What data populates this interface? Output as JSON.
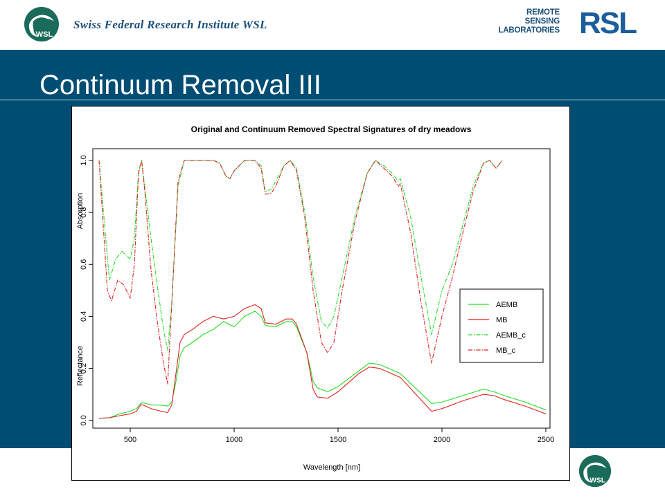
{
  "header": {
    "institute": "Swiss Federal  Research Institute WSL",
    "wsl_logo_text": "WSL",
    "rsl_words": [
      "REMOTE",
      "SENSING",
      "LABORATORIES"
    ],
    "rsl_letters": "RSL"
  },
  "slide": {
    "title": "Continuum Removal III"
  },
  "colors": {
    "band": "#004d74",
    "green": "#22dd22",
    "red": "#dd2222"
  },
  "chart_data": {
    "type": "line",
    "title": "Original and Continuum Removed Spectral Signatures of dry meadows",
    "xlabel": "Wavelength [nm]",
    "ylabel_bottom": "Reflectance",
    "ylabel_top": "Absorption",
    "xlim": [
      320,
      2520
    ],
    "ylim": [
      -0.03,
      1.045
    ],
    "xticks": [
      500,
      1000,
      1500,
      2000,
      2500
    ],
    "yticks": [
      0.0,
      0.2,
      0.4,
      0.6,
      0.8,
      1.0
    ],
    "ytick_labels": [
      "0.0",
      "0.2",
      "0.4",
      "0.6",
      "0.8",
      "1.0"
    ],
    "legend": {
      "position": "right",
      "entries": [
        "AEMB",
        "MB",
        "AEMB_c",
        "MB_c"
      ]
    },
    "series": [
      {
        "name": "AEMB",
        "color": "#22dd22",
        "style": "solid",
        "x": [
          350,
          400,
          450,
          500,
          530,
          550,
          560,
          600,
          650,
          680,
          700,
          720,
          740,
          760,
          800,
          850,
          900,
          950,
          1000,
          1050,
          1100,
          1130,
          1150,
          1200,
          1250,
          1280,
          1300,
          1350,
          1380,
          1400,
          1450,
          1500,
          1600,
          1650,
          1700,
          1800,
          1950,
          2000,
          2100,
          2200,
          2250,
          2300,
          2400,
          2500
        ],
        "y": [
          0.008,
          0.01,
          0.025,
          0.035,
          0.045,
          0.065,
          0.068,
          0.06,
          0.058,
          0.055,
          0.07,
          0.15,
          0.25,
          0.28,
          0.3,
          0.33,
          0.35,
          0.38,
          0.36,
          0.4,
          0.42,
          0.4,
          0.365,
          0.36,
          0.38,
          0.38,
          0.36,
          0.26,
          0.15,
          0.125,
          0.11,
          0.13,
          0.19,
          0.22,
          0.215,
          0.18,
          0.065,
          0.07,
          0.095,
          0.12,
          0.11,
          0.095,
          0.07,
          0.04
        ]
      },
      {
        "name": "MB",
        "color": "#dd2222",
        "style": "solid",
        "x": [
          350,
          400,
          450,
          500,
          530,
          550,
          560,
          600,
          650,
          680,
          700,
          720,
          740,
          760,
          800,
          850,
          900,
          950,
          1000,
          1050,
          1100,
          1130,
          1150,
          1200,
          1250,
          1280,
          1300,
          1350,
          1380,
          1400,
          1450,
          1500,
          1600,
          1650,
          1700,
          1800,
          1950,
          2000,
          2100,
          2200,
          2250,
          2300,
          2400,
          2500
        ],
        "y": [
          0.008,
          0.01,
          0.018,
          0.025,
          0.035,
          0.06,
          0.06,
          0.045,
          0.035,
          0.03,
          0.06,
          0.18,
          0.3,
          0.33,
          0.35,
          0.38,
          0.4,
          0.39,
          0.4,
          0.43,
          0.445,
          0.43,
          0.375,
          0.37,
          0.39,
          0.39,
          0.37,
          0.26,
          0.12,
          0.09,
          0.085,
          0.11,
          0.18,
          0.205,
          0.2,
          0.165,
          0.035,
          0.045,
          0.075,
          0.1,
          0.095,
          0.08,
          0.055,
          0.025
        ]
      },
      {
        "name": "AEMB_c",
        "color": "#22dd22",
        "style": "dashdot",
        "x": [
          350,
          380,
          400,
          430,
          460,
          500,
          520,
          540,
          555,
          570,
          600,
          630,
          660,
          680,
          700,
          730,
          760,
          800,
          850,
          900,
          930,
          960,
          980,
          1000,
          1050,
          1100,
          1130,
          1150,
          1180,
          1200,
          1240,
          1270,
          1300,
          1340,
          1380,
          1420,
          1450,
          1480,
          1520,
          1580,
          1640,
          1680,
          1720,
          1760,
          1790,
          1800,
          1850,
          1900,
          1950,
          2000,
          2050,
          2100,
          2150,
          2200,
          2230,
          2260,
          2290
        ],
        "y": [
          1.0,
          0.72,
          0.54,
          0.62,
          0.65,
          0.62,
          0.7,
          0.96,
          1.0,
          0.9,
          0.7,
          0.52,
          0.35,
          0.27,
          0.45,
          0.9,
          1.0,
          1.0,
          1.0,
          1.0,
          0.99,
          0.94,
          0.93,
          0.96,
          1.0,
          1.0,
          0.98,
          0.88,
          0.89,
          0.92,
          0.98,
          1.0,
          0.97,
          0.8,
          0.55,
          0.38,
          0.355,
          0.4,
          0.55,
          0.78,
          0.95,
          1.0,
          0.98,
          0.95,
          0.92,
          0.93,
          0.78,
          0.55,
          0.33,
          0.5,
          0.6,
          0.75,
          0.9,
          0.99,
          1.0,
          0.97,
          1.0
        ]
      },
      {
        "name": "MB_c",
        "color": "#dd2222",
        "style": "dashdot",
        "x": [
          350,
          370,
          390,
          410,
          440,
          470,
          500,
          520,
          540,
          555,
          570,
          600,
          630,
          660,
          680,
          700,
          730,
          760,
          800,
          850,
          900,
          930,
          960,
          980,
          1000,
          1050,
          1100,
          1130,
          1150,
          1180,
          1200,
          1240,
          1270,
          1300,
          1340,
          1380,
          1420,
          1450,
          1480,
          1520,
          1580,
          1640,
          1680,
          1720,
          1760,
          1790,
          1800,
          1850,
          1900,
          1950,
          2000,
          2050,
          2100,
          2150,
          2200,
          2230,
          2260,
          2290
        ],
        "y": [
          1.0,
          0.75,
          0.5,
          0.46,
          0.54,
          0.52,
          0.47,
          0.6,
          0.95,
          1.0,
          0.88,
          0.58,
          0.38,
          0.22,
          0.14,
          0.45,
          0.92,
          1.0,
          1.0,
          1.0,
          1.0,
          0.99,
          0.94,
          0.93,
          0.96,
          1.0,
          1.0,
          0.97,
          0.87,
          0.875,
          0.9,
          0.98,
          1.0,
          0.96,
          0.78,
          0.5,
          0.3,
          0.26,
          0.3,
          0.5,
          0.76,
          0.95,
          1.0,
          0.97,
          0.94,
          0.9,
          0.91,
          0.72,
          0.45,
          0.22,
          0.4,
          0.55,
          0.72,
          0.88,
          0.99,
          1.0,
          0.97,
          1.0
        ]
      }
    ]
  }
}
